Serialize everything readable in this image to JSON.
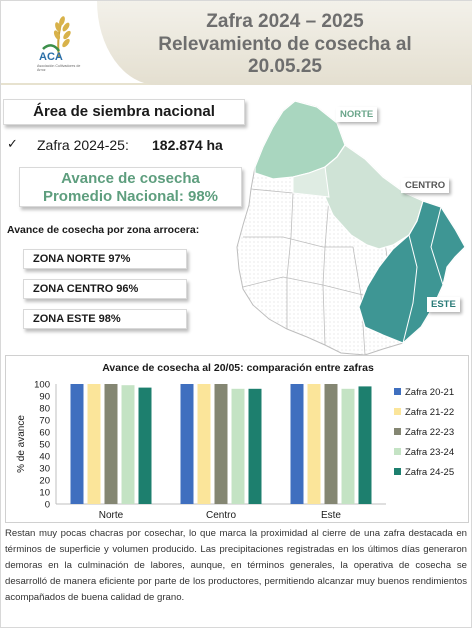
{
  "header": {
    "logo_text": "ACA",
    "logo_subtext": "Asociación Cultivadores de Arroz",
    "title_line_1": "Zafra 2024 – 2025",
    "title_line_2": "Relevamiento de cosecha al",
    "title_line_3": "20.05.25"
  },
  "area": {
    "heading": "Área de siembra nacional",
    "check_icon": "check-icon",
    "zafra_label": "Zafra 2024-25:",
    "zafra_value": "182.874 ha"
  },
  "avance": {
    "line_1": "Avance de cosecha",
    "line_2": "Promedio Nacional: 98%"
  },
  "zonas": {
    "heading": "Avance de cosecha por zona arrocera:",
    "norte": "ZONA NORTE 97%",
    "centro": "ZONA CENTRO 96%",
    "este": "ZONA ESTE 98%"
  },
  "map": {
    "label_norte": "NORTE",
    "label_centro": "CENTRO",
    "label_este": "ESTE",
    "colors": {
      "norte": "#a9d6bf",
      "centro": "#cfe3d6",
      "este": "#3e9694",
      "other": "#ffffff"
    }
  },
  "chart_data": {
    "type": "bar",
    "title": "Avance de cosecha al 20/05: comparación entre zafras",
    "ylabel": "% de avance",
    "xlabel": "",
    "ylim": [
      0,
      100
    ],
    "yticks": [
      0,
      10,
      20,
      30,
      40,
      50,
      60,
      70,
      80,
      90,
      100
    ],
    "categories": [
      "Norte",
      "Centro",
      "Este"
    ],
    "series": [
      {
        "name": "Zafra 20-21",
        "color": "#3f6fbf",
        "values": [
          100,
          100,
          100
        ]
      },
      {
        "name": "Zafra 21-22",
        "color": "#fbe59a",
        "values": [
          100,
          100,
          100
        ]
      },
      {
        "name": "Zafra 22-23",
        "color": "#848672",
        "values": [
          100,
          100,
          100
        ]
      },
      {
        "name": "Zafra 23-24",
        "color": "#c4e3c4",
        "values": [
          99,
          96,
          96
        ]
      },
      {
        "name": "Zafra 24-25",
        "color": "#1d7f6e",
        "values": [
          97,
          96,
          98
        ]
      }
    ],
    "legend": "right",
    "grid": false
  },
  "paragraph": "Restan muy pocas chacras por cosechar, lo que marca la proximidad al cierre de una zafra destacada en términos de superficie y volumen producido. Las precipitaciones registradas en los últimos días generaron demoras en la culminación de labores, aunque, en términos generales, la operativa de cosecha se desarrolló de manera eficiente por parte de los productores, permitiendo alcanzar muy buenos rendimientos acompañados de buena calidad de grano."
}
